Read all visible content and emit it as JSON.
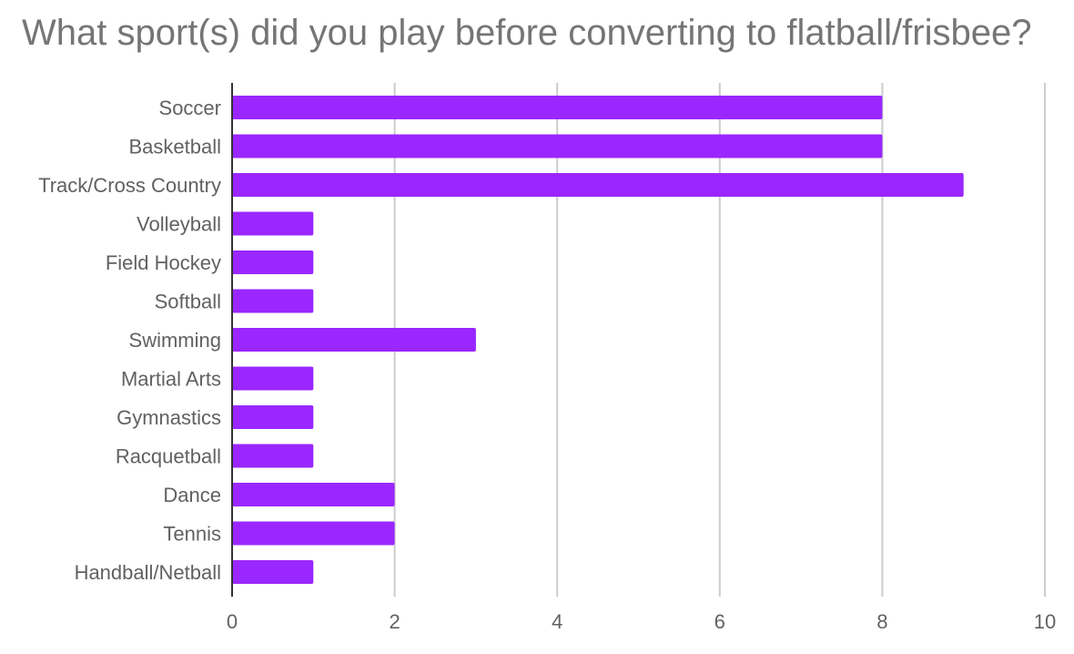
{
  "chart_data": {
    "type": "bar",
    "orientation": "horizontal",
    "title": "What sport(s) did you play before converting to flatball/frisbee?",
    "categories": [
      "Soccer",
      "Basketball",
      "Track/Cross Country",
      "Volleyball",
      "Field Hockey",
      "Softball",
      "Swimming",
      "Martial Arts",
      "Gymnastics",
      "Racquetball",
      "Dance",
      "Tennis",
      "Handball/Netball"
    ],
    "values": [
      8,
      8,
      9,
      1,
      1,
      1,
      3,
      1,
      1,
      1,
      2,
      2,
      1
    ],
    "xlim": [
      0,
      10
    ],
    "xticks": [
      "0",
      "2",
      "4",
      "6",
      "8",
      "10"
    ],
    "xlabel": "",
    "ylabel": "",
    "grid": true,
    "legend": "none",
    "colors": {
      "bar": "#9a27ff",
      "grid": "#cccccc",
      "axis": "#333333",
      "text": "#616161",
      "title": "#757575"
    }
  }
}
